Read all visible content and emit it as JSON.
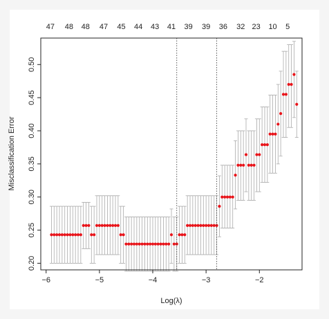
{
  "chart_data": {
    "type": "scatter",
    "title": "",
    "xlabel": "Log(λ)",
    "ylabel": "Misclassification Error",
    "xlim": [
      -6.1,
      -1.2
    ],
    "ylim": [
      0.19,
      0.54
    ],
    "x_ticks": [
      -6,
      -5,
      -4,
      -3,
      -2
    ],
    "x_tick_labels": [
      "−6",
      "−5",
      "−4",
      "−3",
      "−2"
    ],
    "y_ticks": [
      0.2,
      0.25,
      0.3,
      0.35,
      0.4,
      0.45,
      0.5
    ],
    "y_tick_labels": [
      "0.20",
      "0.25",
      "0.30",
      "0.35",
      "0.40",
      "0.45",
      "0.50"
    ],
    "top_labels": [
      {
        "x": -5.92,
        "label": "47"
      },
      {
        "x": -5.57,
        "label": "48"
      },
      {
        "x": -5.26,
        "label": "48"
      },
      {
        "x": -4.92,
        "label": "47"
      },
      {
        "x": -4.59,
        "label": "45"
      },
      {
        "x": -4.27,
        "label": "44"
      },
      {
        "x": -3.96,
        "label": "43"
      },
      {
        "x": -3.65,
        "label": "41"
      },
      {
        "x": -3.33,
        "label": "39"
      },
      {
        "x": -3.0,
        "label": "39"
      },
      {
        "x": -2.68,
        "label": "36"
      },
      {
        "x": -2.35,
        "label": "32"
      },
      {
        "x": -2.06,
        "label": "23"
      },
      {
        "x": -1.75,
        "label": "10"
      },
      {
        "x": -1.47,
        "label": "5"
      }
    ],
    "vlines": [
      -3.55,
      -2.8
    ],
    "grid": false,
    "point_color": "#e8141a",
    "errorbar_color": "#aaaaaa",
    "series": [
      {
        "x": [
          -5.9,
          -5.85,
          -5.8,
          -5.75,
          -5.7,
          -5.65,
          -5.6,
          -5.55,
          -5.5,
          -5.45,
          -5.4,
          -5.35,
          -5.3,
          -5.25,
          -5.2,
          -5.15,
          -5.1,
          -5.05,
          -5.0,
          -4.95,
          -4.9,
          -4.85,
          -4.8,
          -4.75,
          -4.7,
          -4.65,
          -4.6,
          -4.55,
          -4.5,
          -4.45,
          -4.4,
          -4.35,
          -4.3,
          -4.25,
          -4.2,
          -4.15,
          -4.1,
          -4.05,
          -4.0,
          -3.95,
          -3.9,
          -3.85,
          -3.8,
          -3.75,
          -3.7,
          -3.65,
          -3.6,
          -3.55,
          -3.5,
          -3.45,
          -3.4,
          -3.35,
          -3.3,
          -3.25,
          -3.2,
          -3.15,
          -3.1,
          -3.05,
          -3.0,
          -2.95,
          -2.9,
          -2.85,
          -2.8,
          -2.75,
          -2.7,
          -2.65,
          -2.6,
          -2.55,
          -2.5,
          -2.45,
          -2.4,
          -2.35,
          -2.3,
          -2.25,
          -2.2,
          -2.15,
          -2.1,
          -2.05,
          -2.0,
          -1.95,
          -1.9,
          -1.85,
          -1.8,
          -1.75,
          -1.7,
          -1.65,
          -1.6,
          -1.55,
          -1.5,
          -1.45,
          -1.4,
          -1.35,
          -1.3
        ],
        "y": [
          0.243,
          0.243,
          0.243,
          0.243,
          0.243,
          0.243,
          0.243,
          0.243,
          0.243,
          0.243,
          0.243,
          0.243,
          0.257,
          0.257,
          0.257,
          0.243,
          0.243,
          0.257,
          0.257,
          0.257,
          0.257,
          0.257,
          0.257,
          0.257,
          0.257,
          0.257,
          0.243,
          0.243,
          0.229,
          0.229,
          0.229,
          0.229,
          0.229,
          0.229,
          0.229,
          0.229,
          0.229,
          0.229,
          0.229,
          0.229,
          0.229,
          0.229,
          0.229,
          0.229,
          0.229,
          0.243,
          0.229,
          0.229,
          0.243,
          0.243,
          0.243,
          0.257,
          0.257,
          0.257,
          0.257,
          0.257,
          0.257,
          0.257,
          0.257,
          0.257,
          0.257,
          0.257,
          0.257,
          0.286,
          0.3,
          0.3,
          0.3,
          0.3,
          0.3,
          0.333,
          0.348,
          0.348,
          0.348,
          0.364,
          0.348,
          0.348,
          0.348,
          0.364,
          0.364,
          0.379,
          0.379,
          0.379,
          0.395,
          0.395,
          0.395,
          0.41,
          0.426,
          0.455,
          0.455,
          0.47,
          0.47,
          0.485,
          0.44
        ],
        "lower": [
          0.2,
          0.2,
          0.2,
          0.2,
          0.2,
          0.2,
          0.2,
          0.2,
          0.2,
          0.2,
          0.2,
          0.2,
          0.222,
          0.222,
          0.222,
          0.2,
          0.2,
          0.213,
          0.213,
          0.213,
          0.213,
          0.213,
          0.213,
          0.213,
          0.213,
          0.213,
          0.2,
          0.2,
          0.188,
          0.188,
          0.188,
          0.188,
          0.188,
          0.188,
          0.188,
          0.188,
          0.188,
          0.188,
          0.188,
          0.188,
          0.188,
          0.188,
          0.188,
          0.188,
          0.188,
          0.2,
          0.188,
          0.188,
          0.2,
          0.2,
          0.2,
          0.213,
          0.213,
          0.213,
          0.213,
          0.213,
          0.213,
          0.213,
          0.213,
          0.213,
          0.213,
          0.213,
          0.213,
          0.24,
          0.253,
          0.253,
          0.253,
          0.253,
          0.253,
          0.282,
          0.295,
          0.295,
          0.295,
          0.308,
          0.295,
          0.295,
          0.295,
          0.308,
          0.308,
          0.322,
          0.322,
          0.322,
          0.336,
          0.336,
          0.336,
          0.35,
          0.362,
          0.39,
          0.39,
          0.405,
          0.405,
          0.42,
          0.39
        ],
        "upper": [
          0.286,
          0.286,
          0.286,
          0.286,
          0.286,
          0.286,
          0.286,
          0.286,
          0.286,
          0.286,
          0.286,
          0.286,
          0.292,
          0.292,
          0.292,
          0.286,
          0.286,
          0.302,
          0.302,
          0.302,
          0.302,
          0.302,
          0.302,
          0.302,
          0.302,
          0.302,
          0.286,
          0.286,
          0.27,
          0.27,
          0.27,
          0.27,
          0.27,
          0.27,
          0.27,
          0.27,
          0.27,
          0.27,
          0.27,
          0.27,
          0.27,
          0.27,
          0.27,
          0.27,
          0.27,
          0.282,
          0.27,
          0.27,
          0.286,
          0.286,
          0.286,
          0.302,
          0.302,
          0.302,
          0.302,
          0.302,
          0.302,
          0.302,
          0.302,
          0.302,
          0.302,
          0.302,
          0.302,
          0.332,
          0.348,
          0.348,
          0.348,
          0.348,
          0.348,
          0.385,
          0.4,
          0.4,
          0.4,
          0.418,
          0.4,
          0.4,
          0.4,
          0.418,
          0.418,
          0.436,
          0.436,
          0.436,
          0.454,
          0.454,
          0.454,
          0.47,
          0.49,
          0.52,
          0.52,
          0.53,
          0.53,
          0.535,
          0.49
        ]
      }
    ]
  }
}
